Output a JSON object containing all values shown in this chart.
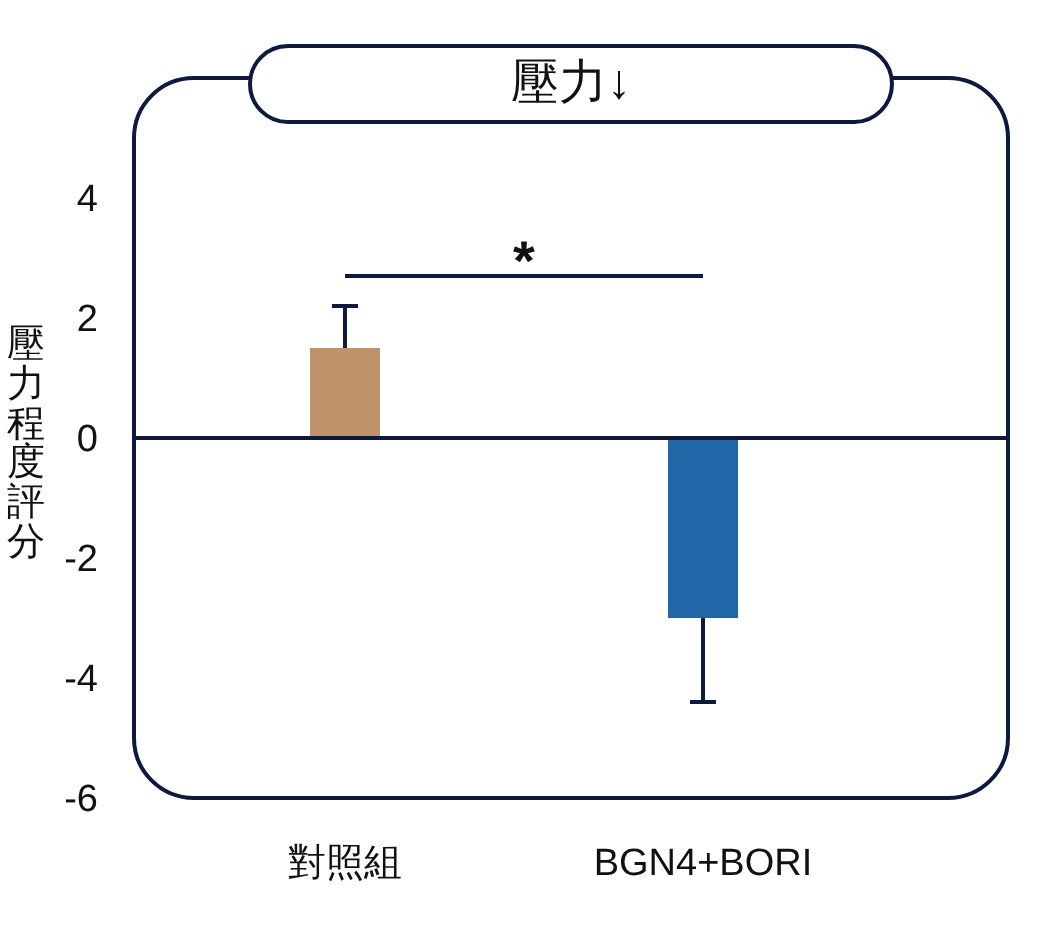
{
  "chart_data": {
    "type": "bar",
    "title": "壓力↓",
    "ylabel": "壓力程度評分",
    "categories": [
      "對照組",
      "BGN4+BORI"
    ],
    "values": [
      1.5,
      -3.0
    ],
    "colors": [
      "#c0926a",
      "#2166a6"
    ],
    "errors": [
      [
        1.5,
        2.2
      ],
      [
        -4.4,
        -3.0
      ]
    ],
    "ylim": [
      -6,
      6
    ],
    "yticks": [
      -6,
      -4,
      -2,
      0,
      2,
      4
    ],
    "annotations": [
      "*"
    ]
  }
}
